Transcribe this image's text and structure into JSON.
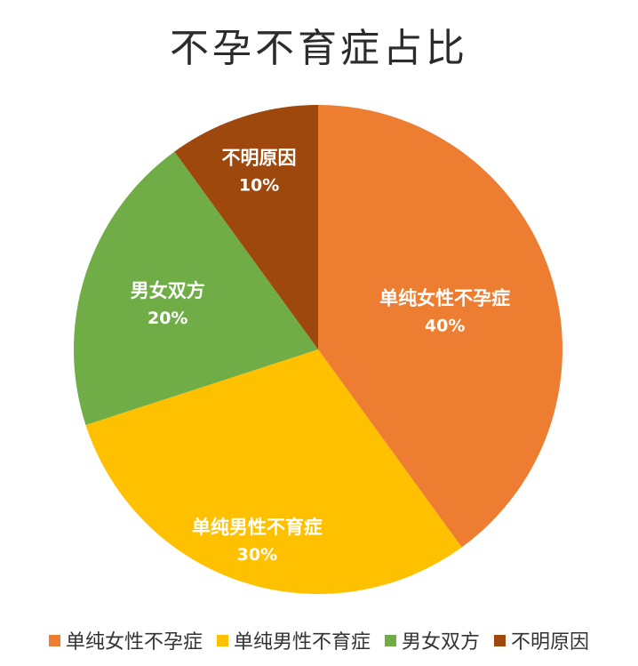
{
  "chart_data": {
    "type": "pie",
    "title": "不孕不育症占比",
    "categories": [
      "单纯女性不孕症",
      "单纯男性不育症",
      "男女双方",
      "不明原因"
    ],
    "values": [
      40,
      30,
      20,
      10
    ],
    "value_labels": [
      "40%",
      "30%",
      "20%",
      "10%"
    ],
    "colors": [
      "#ED7D31",
      "#FFC000",
      "#70AD47",
      "#9E480E"
    ],
    "legend_position": "bottom",
    "start_angle": "12 o'clock",
    "direction": "clockwise"
  }
}
